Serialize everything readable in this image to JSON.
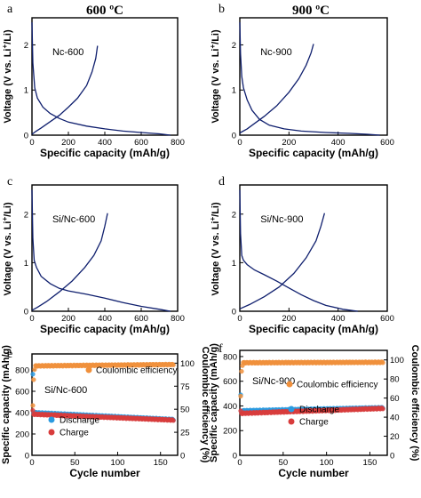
{
  "titles": [
    "600 ºC",
    "900 ºC"
  ],
  "shared": {
    "voltage_ylabel_parts": [
      "Voltage (V vs. Li",
      "+",
      "/Li)"
    ],
    "xlabel": "Specific capacity (mAh/g)",
    "cycle_xlabel": "Cycle number",
    "cap_ylabel": "Specific capacity (mAh/g)",
    "ce_ylabel": "Coulombic efficiency (%)"
  },
  "colors": {
    "curve": "#0f1f6e",
    "ce": "#f0903c",
    "discharge": "#2a9ae0",
    "charge": "#d83c3c"
  },
  "chart_data": [
    {
      "panel": "a",
      "type": "line",
      "annotation": "Nc-600",
      "xlim": [
        0,
        800
      ],
      "ylim": [
        0,
        2.6
      ],
      "xticks": [
        0,
        200,
        400,
        600,
        800
      ],
      "yticks": [
        0,
        1,
        2
      ],
      "series": [
        {
          "x": [
            0,
            5,
            15,
            30,
            60,
            100,
            150,
            200,
            300,
            400,
            500,
            600,
            700,
            760
          ],
          "y": [
            2.5,
            1.6,
            1.05,
            0.82,
            0.62,
            0.48,
            0.37,
            0.29,
            0.2,
            0.14,
            0.09,
            0.06,
            0.03,
            0.0
          ]
        },
        {
          "x": [
            0,
            20,
            50,
            100,
            150,
            200,
            250,
            300,
            330,
            350,
            360
          ],
          "y": [
            0.02,
            0.08,
            0.16,
            0.3,
            0.44,
            0.62,
            0.82,
            1.1,
            1.4,
            1.7,
            1.98
          ]
        }
      ]
    },
    {
      "panel": "b",
      "type": "line",
      "annotation": "Nc-900",
      "xlim": [
        0,
        600
      ],
      "ylim": [
        0,
        2.6
      ],
      "xticks": [
        0,
        200,
        400,
        600
      ],
      "yticks": [
        0,
        1,
        2
      ],
      "series": [
        {
          "x": [
            0,
            3,
            8,
            15,
            30,
            50,
            80,
            120,
            180,
            250,
            350,
            450,
            520,
            570
          ],
          "y": [
            2.5,
            1.8,
            1.3,
            1.05,
            0.78,
            0.55,
            0.35,
            0.22,
            0.14,
            0.09,
            0.06,
            0.04,
            0.02,
            0.0
          ]
        },
        {
          "x": [
            0,
            30,
            60,
            100,
            150,
            200,
            240,
            270,
            290,
            300
          ],
          "y": [
            0.05,
            0.14,
            0.26,
            0.42,
            0.65,
            0.95,
            1.25,
            1.55,
            1.82,
            2.02
          ]
        }
      ]
    },
    {
      "panel": "c",
      "type": "line",
      "annotation": "Si/Nc-600",
      "xlim": [
        0,
        800
      ],
      "ylim": [
        0,
        2.6
      ],
      "xticks": [
        0,
        200,
        400,
        600,
        800
      ],
      "yticks": [
        0,
        1,
        2
      ],
      "series": [
        {
          "x": [
            0,
            5,
            12,
            25,
            50,
            100,
            150,
            200,
            300,
            400,
            500,
            600,
            700,
            760
          ],
          "y": [
            2.5,
            1.5,
            1.05,
            0.9,
            0.72,
            0.57,
            0.47,
            0.42,
            0.35,
            0.27,
            0.18,
            0.1,
            0.04,
            0.0
          ]
        },
        {
          "x": [
            0,
            30,
            80,
            150,
            220,
            290,
            340,
            380,
            400,
            415
          ],
          "y": [
            0.02,
            0.08,
            0.2,
            0.4,
            0.62,
            0.9,
            1.15,
            1.45,
            1.75,
            2.02
          ]
        }
      ]
    },
    {
      "panel": "d",
      "type": "line",
      "annotation": "Si/Nc-900",
      "xlim": [
        0,
        600
      ],
      "ylim": [
        0,
        2.6
      ],
      "xticks": [
        0,
        200,
        400,
        600
      ],
      "yticks": [
        0,
        1,
        2
      ],
      "series": [
        {
          "x": [
            0,
            3,
            8,
            15,
            30,
            60,
            100,
            150,
            200,
            250,
            300,
            350,
            420,
            480
          ],
          "y": [
            2.5,
            1.6,
            1.15,
            1.05,
            0.96,
            0.85,
            0.75,
            0.62,
            0.48,
            0.34,
            0.22,
            0.12,
            0.04,
            0.0
          ]
        },
        {
          "x": [
            0,
            40,
            100,
            160,
            220,
            270,
            310,
            330,
            345
          ],
          "y": [
            0.05,
            0.14,
            0.3,
            0.5,
            0.78,
            1.1,
            1.45,
            1.75,
            2.02
          ]
        }
      ]
    },
    {
      "panel": "e",
      "type": "scatter",
      "annotation": "Si/Nc-600",
      "xlim": [
        0,
        170
      ],
      "xticks": [
        0,
        50,
        100,
        150
      ],
      "ylim_left": [
        0,
        950
      ],
      "yticks_left": [
        0,
        200,
        400,
        600,
        800
      ],
      "ylim_right": [
        0,
        110
      ],
      "yticks_right": [
        0,
        25,
        50,
        75,
        100
      ],
      "series": [
        {
          "name": "Coulombic efficiency",
          "axis": "right",
          "first_points": [
            [
              1,
              54
            ],
            [
              2,
              82
            ],
            [
              3,
              93
            ]
          ],
          "start": 97,
          "end": 98.5,
          "n": 165
        },
        {
          "name": "Discharge",
          "axis": "left",
          "first_points": [
            [
              1,
              760
            ]
          ],
          "start": 400,
          "end": 335,
          "n": 165
        },
        {
          "name": "Charge",
          "axis": "left",
          "first_points": [
            [
              1,
              420
            ]
          ],
          "start": 385,
          "end": 330,
          "n": 165
        }
      ]
    },
    {
      "panel": "f",
      "type": "scatter",
      "annotation": "Si/Nc-900",
      "xlim": [
        0,
        170
      ],
      "xticks": [
        0,
        50,
        100,
        150
      ],
      "ylim_left": [
        0,
        850
      ],
      "yticks_left": [
        0,
        200,
        400,
        600,
        800
      ],
      "ylim_right": [
        0,
        110
      ],
      "yticks_right": [
        0,
        20,
        40,
        60,
        80,
        100
      ],
      "series": [
        {
          "name": "Coulombic efficiency",
          "axis": "right",
          "first_points": [
            [
              1,
              62
            ],
            [
              2,
              88
            ],
            [
              3,
              94
            ]
          ],
          "start": 97,
          "end": 97.5,
          "n": 165
        },
        {
          "name": "Discharge",
          "axis": "left",
          "first_points": [
            [
              1,
              490
            ]
          ],
          "start": 360,
          "end": 385,
          "n": 165
        },
        {
          "name": "Charge",
          "axis": "left",
          "first_points": [
            [
              1,
              360
            ]
          ],
          "start": 340,
          "end": 380,
          "n": 165
        }
      ]
    }
  ]
}
